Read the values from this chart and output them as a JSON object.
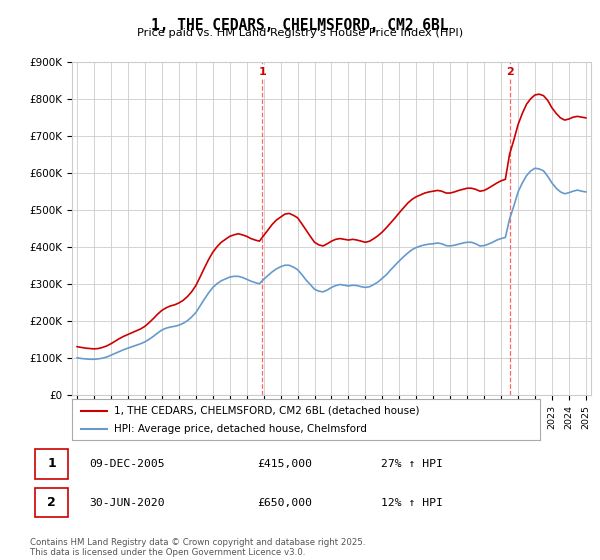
{
  "title": "1, THE CEDARS, CHELMSFORD, CM2 6BL",
  "subtitle": "Price paid vs. HM Land Registry's House Price Index (HPI)",
  "x_start_year": 1995,
  "x_end_year": 2025,
  "y_min": 0,
  "y_max": 900000,
  "y_ticks": [
    0,
    100000,
    200000,
    300000,
    400000,
    500000,
    600000,
    700000,
    800000,
    900000
  ],
  "y_tick_labels": [
    "£0",
    "£100K",
    "£200K",
    "£300K",
    "£400K",
    "£500K",
    "£600K",
    "£700K",
    "£800K",
    "£900K"
  ],
  "sale1_year": 2005.93,
  "sale1_price": 415000,
  "sale1_label": "1",
  "sale1_date": "09-DEC-2005",
  "sale1_hpi": "27% ↑ HPI",
  "sale2_year": 2020.5,
  "sale2_price": 650000,
  "sale2_label": "2",
  "sale2_date": "30-JUN-2020",
  "sale2_hpi": "12% ↑ HPI",
  "line_red_color": "#cc0000",
  "line_blue_color": "#6699cc",
  "vline_color": "#ff6666",
  "grid_color": "#cccccc",
  "background_color": "#ffffff",
  "legend_label_red": "1, THE CEDARS, CHELMSFORD, CM2 6BL (detached house)",
  "legend_label_blue": "HPI: Average price, detached house, Chelmsford",
  "footer": "Contains HM Land Registry data © Crown copyright and database right 2025.\nThis data is licensed under the Open Government Licence v3.0.",
  "red_hpi_years": [
    1995.0,
    1995.25,
    1995.5,
    1995.75,
    1996.0,
    1996.25,
    1996.5,
    1996.75,
    1997.0,
    1997.25,
    1997.5,
    1997.75,
    1998.0,
    1998.25,
    1998.5,
    1998.75,
    1999.0,
    1999.25,
    1999.5,
    1999.75,
    2000.0,
    2000.25,
    2000.5,
    2000.75,
    2001.0,
    2001.25,
    2001.5,
    2001.75,
    2002.0,
    2002.25,
    2002.5,
    2002.75,
    2003.0,
    2003.25,
    2003.5,
    2003.75,
    2004.0,
    2004.25,
    2004.5,
    2004.75,
    2005.0,
    2005.25,
    2005.5,
    2005.75,
    2006.0,
    2006.25,
    2006.5,
    2006.75,
    2007.0,
    2007.25,
    2007.5,
    2007.75,
    2008.0,
    2008.25,
    2008.5,
    2008.75,
    2009.0,
    2009.25,
    2009.5,
    2009.75,
    2010.0,
    2010.25,
    2010.5,
    2010.75,
    2011.0,
    2011.25,
    2011.5,
    2011.75,
    2012.0,
    2012.25,
    2012.5,
    2012.75,
    2013.0,
    2013.25,
    2013.5,
    2013.75,
    2014.0,
    2014.25,
    2014.5,
    2014.75,
    2015.0,
    2015.25,
    2015.5,
    2015.75,
    2016.0,
    2016.25,
    2016.5,
    2016.75,
    2017.0,
    2017.25,
    2017.5,
    2017.75,
    2018.0,
    2018.25,
    2018.5,
    2018.75,
    2019.0,
    2019.25,
    2019.5,
    2019.75,
    2020.0,
    2020.25,
    2020.5,
    2020.75,
    2021.0,
    2021.25,
    2021.5,
    2021.75,
    2022.0,
    2022.25,
    2022.5,
    2022.75,
    2023.0,
    2023.25,
    2023.5,
    2023.75,
    2024.0,
    2024.25,
    2024.5,
    2024.75,
    2025.0
  ],
  "red_hpi_values": [
    130000,
    128000,
    126000,
    125000,
    124000,
    125000,
    128000,
    132000,
    138000,
    145000,
    152000,
    158000,
    163000,
    168000,
    173000,
    178000,
    185000,
    195000,
    206000,
    218000,
    228000,
    235000,
    240000,
    243000,
    248000,
    255000,
    265000,
    278000,
    295000,
    318000,
    342000,
    365000,
    385000,
    400000,
    412000,
    420000,
    428000,
    432000,
    435000,
    432000,
    428000,
    422000,
    418000,
    415000,
    430000,
    445000,
    460000,
    472000,
    480000,
    488000,
    490000,
    485000,
    478000,
    462000,
    445000,
    428000,
    412000,
    405000,
    402000,
    408000,
    415000,
    420000,
    422000,
    420000,
    418000,
    420000,
    418000,
    415000,
    412000,
    415000,
    422000,
    430000,
    440000,
    452000,
    465000,
    478000,
    492000,
    505000,
    518000,
    528000,
    535000,
    540000,
    545000,
    548000,
    550000,
    552000,
    550000,
    545000,
    545000,
    548000,
    552000,
    555000,
    558000,
    558000,
    555000,
    550000,
    552000,
    558000,
    565000,
    572000,
    578000,
    582000,
    650000,
    688000,
    730000,
    760000,
    785000,
    800000,
    810000,
    812000,
    808000,
    795000,
    775000,
    760000,
    748000,
    742000,
    745000,
    750000,
    752000,
    750000,
    748000
  ],
  "blue_hpi_years": [
    1995.0,
    1995.25,
    1995.5,
    1995.75,
    1996.0,
    1996.25,
    1996.5,
    1996.75,
    1997.0,
    1997.25,
    1997.5,
    1997.75,
    1998.0,
    1998.25,
    1998.5,
    1998.75,
    1999.0,
    1999.25,
    1999.5,
    1999.75,
    2000.0,
    2000.25,
    2000.5,
    2000.75,
    2001.0,
    2001.25,
    2001.5,
    2001.75,
    2002.0,
    2002.25,
    2002.5,
    2002.75,
    2003.0,
    2003.25,
    2003.5,
    2003.75,
    2004.0,
    2004.25,
    2004.5,
    2004.75,
    2005.0,
    2005.25,
    2005.5,
    2005.75,
    2006.0,
    2006.25,
    2006.5,
    2006.75,
    2007.0,
    2007.25,
    2007.5,
    2007.75,
    2008.0,
    2008.25,
    2008.5,
    2008.75,
    2009.0,
    2009.25,
    2009.5,
    2009.75,
    2010.0,
    2010.25,
    2010.5,
    2010.75,
    2011.0,
    2011.25,
    2011.5,
    2011.75,
    2012.0,
    2012.25,
    2012.5,
    2012.75,
    2013.0,
    2013.25,
    2013.5,
    2013.75,
    2014.0,
    2014.25,
    2014.5,
    2014.75,
    2015.0,
    2015.25,
    2015.5,
    2015.75,
    2016.0,
    2016.25,
    2016.5,
    2016.75,
    2017.0,
    2017.25,
    2017.5,
    2017.75,
    2018.0,
    2018.25,
    2018.5,
    2018.75,
    2019.0,
    2019.25,
    2019.5,
    2019.75,
    2020.0,
    2020.25,
    2020.5,
    2020.75,
    2021.0,
    2021.25,
    2021.5,
    2021.75,
    2022.0,
    2022.25,
    2022.5,
    2022.75,
    2023.0,
    2023.25,
    2023.5,
    2023.75,
    2024.0,
    2024.25,
    2024.5,
    2024.75,
    2025.0
  ],
  "blue_hpi_values": [
    100000,
    98000,
    97000,
    96000,
    96000,
    97000,
    99000,
    102000,
    107000,
    112000,
    117000,
    122000,
    126000,
    130000,
    134000,
    138000,
    143000,
    150000,
    158000,
    167000,
    175000,
    180000,
    183000,
    185000,
    188000,
    193000,
    200000,
    210000,
    222000,
    240000,
    258000,
    275000,
    290000,
    300000,
    308000,
    313000,
    318000,
    320000,
    320000,
    317000,
    312000,
    307000,
    303000,
    300000,
    312000,
    322000,
    332000,
    340000,
    346000,
    350000,
    350000,
    345000,
    338000,
    325000,
    310000,
    298000,
    285000,
    280000,
    278000,
    283000,
    290000,
    295000,
    298000,
    296000,
    294000,
    296000,
    295000,
    292000,
    290000,
    292000,
    298000,
    305000,
    315000,
    325000,
    338000,
    350000,
    362000,
    373000,
    383000,
    392000,
    398000,
    402000,
    405000,
    407000,
    408000,
    410000,
    408000,
    403000,
    402000,
    404000,
    407000,
    410000,
    412000,
    412000,
    408000,
    402000,
    403000,
    407000,
    412000,
    418000,
    422000,
    425000,
    475000,
    510000,
    548000,
    572000,
    592000,
    605000,
    612000,
    610000,
    605000,
    590000,
    572000,
    558000,
    548000,
    543000,
    546000,
    550000,
    553000,
    550000,
    548000
  ]
}
